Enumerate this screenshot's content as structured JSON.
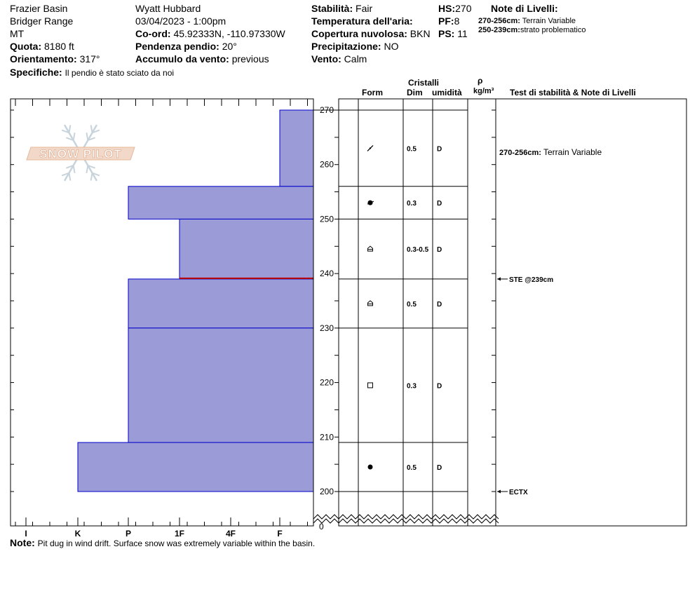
{
  "header": {
    "location": "Frazier Basin",
    "range": "Bridger Range",
    "state": "MT",
    "observer": "Wyatt Hubbard",
    "datetime": "03/04/2023 - 1:00pm",
    "coord_label": "Co-ord:",
    "coord_value": "45.92333N, -110.97330W",
    "quota_label": "Quota:",
    "quota_value": "8180 ft",
    "pendenza_label": "Pendenza pendio:",
    "pendenza_value": "20°",
    "orient_label": "Orientamento:",
    "orient_value": "317°",
    "accumulo_label": "Accumulo da vento:",
    "accumulo_value": "previous",
    "specifiche_label": "Specifiche:",
    "specifiche_value": "Il pendio è stato sciato da noi",
    "stabilita_label": "Stabilità:",
    "stabilita_value": "Fair",
    "temp_label": "Temperatura dell'aria:",
    "copertura_label": "Copertura nuvolosa:",
    "copertura_value": "BKN",
    "precip_label": "Precipitazione:",
    "precip_value": "NO",
    "vento_label": "Vento:",
    "vento_value": "Calm",
    "hs_label": "HS:",
    "hs_value": "270",
    "pf_label": "PF:",
    "pf_value": "8",
    "ps_label": "PS:",
    "ps_value": "11",
    "note_livelli_title": "Note di Livelli:",
    "note1_range": "270-256cm:",
    "note1_text": "Terrain Variable",
    "note2_range": "250-239cm:",
    "note2_text": "strato problematico"
  },
  "columns": {
    "cristalli": "Cristalli",
    "form": "Form",
    "dim": "Dim",
    "umidita": "umidità",
    "rho": "ρ",
    "density_unit": "kg/m³",
    "tests": "Test di stabilità & Note di Livelli"
  },
  "logo_text": "SNOW PILOT",
  "chart_data": {
    "type": "snow-profile",
    "y_axis": {
      "min": 200,
      "max": 270,
      "ticks": [
        270,
        260,
        250,
        240,
        230,
        220,
        210,
        200
      ],
      "break_label": "0"
    },
    "hardness_scale": [
      "I",
      "K",
      "P",
      "1F",
      "4F",
      "F"
    ],
    "layers": [
      {
        "top": 270,
        "bottom": 256,
        "hardness": "F",
        "form": "decomposing",
        "dim": "0.5",
        "moisture": "D"
      },
      {
        "top": 256,
        "bottom": 250,
        "hardness": "P",
        "form": "rounded-faceted",
        "dim": "0.3",
        "moisture": "D"
      },
      {
        "top": 250,
        "bottom": 239,
        "hardness": "1F",
        "form": "depth-hoar",
        "dim": "0.3-0.5",
        "moisture": "D"
      },
      {
        "top": 239,
        "bottom": 230,
        "hardness": "P",
        "form": "depth-hoar",
        "dim": "0.5",
        "moisture": "D"
      },
      {
        "top": 230,
        "bottom": 209,
        "hardness": "P",
        "form": "faceted",
        "dim": "0.3",
        "moisture": "D"
      },
      {
        "top": 209,
        "bottom": 200,
        "hardness": "K",
        "form": "rounded",
        "dim": "0.5",
        "moisture": "D"
      }
    ],
    "problem_layer": 239,
    "tests": [
      {
        "depth": 239,
        "label": "STE @239cm"
      },
      {
        "depth": 200,
        "label": "ECTX"
      }
    ],
    "layer_notes": [
      {
        "depth": 263,
        "range": "270-256cm:",
        "text": "Terrain Variable"
      }
    ]
  },
  "footer": {
    "note_label": "Note:",
    "note_text": "Pit dug in wind drift. Surface snow was extremely variable within the basin."
  },
  "colors": {
    "layer_fill": "#9b9bd8",
    "layer_stroke": "#0000c8",
    "problem_line": "#c00000"
  }
}
